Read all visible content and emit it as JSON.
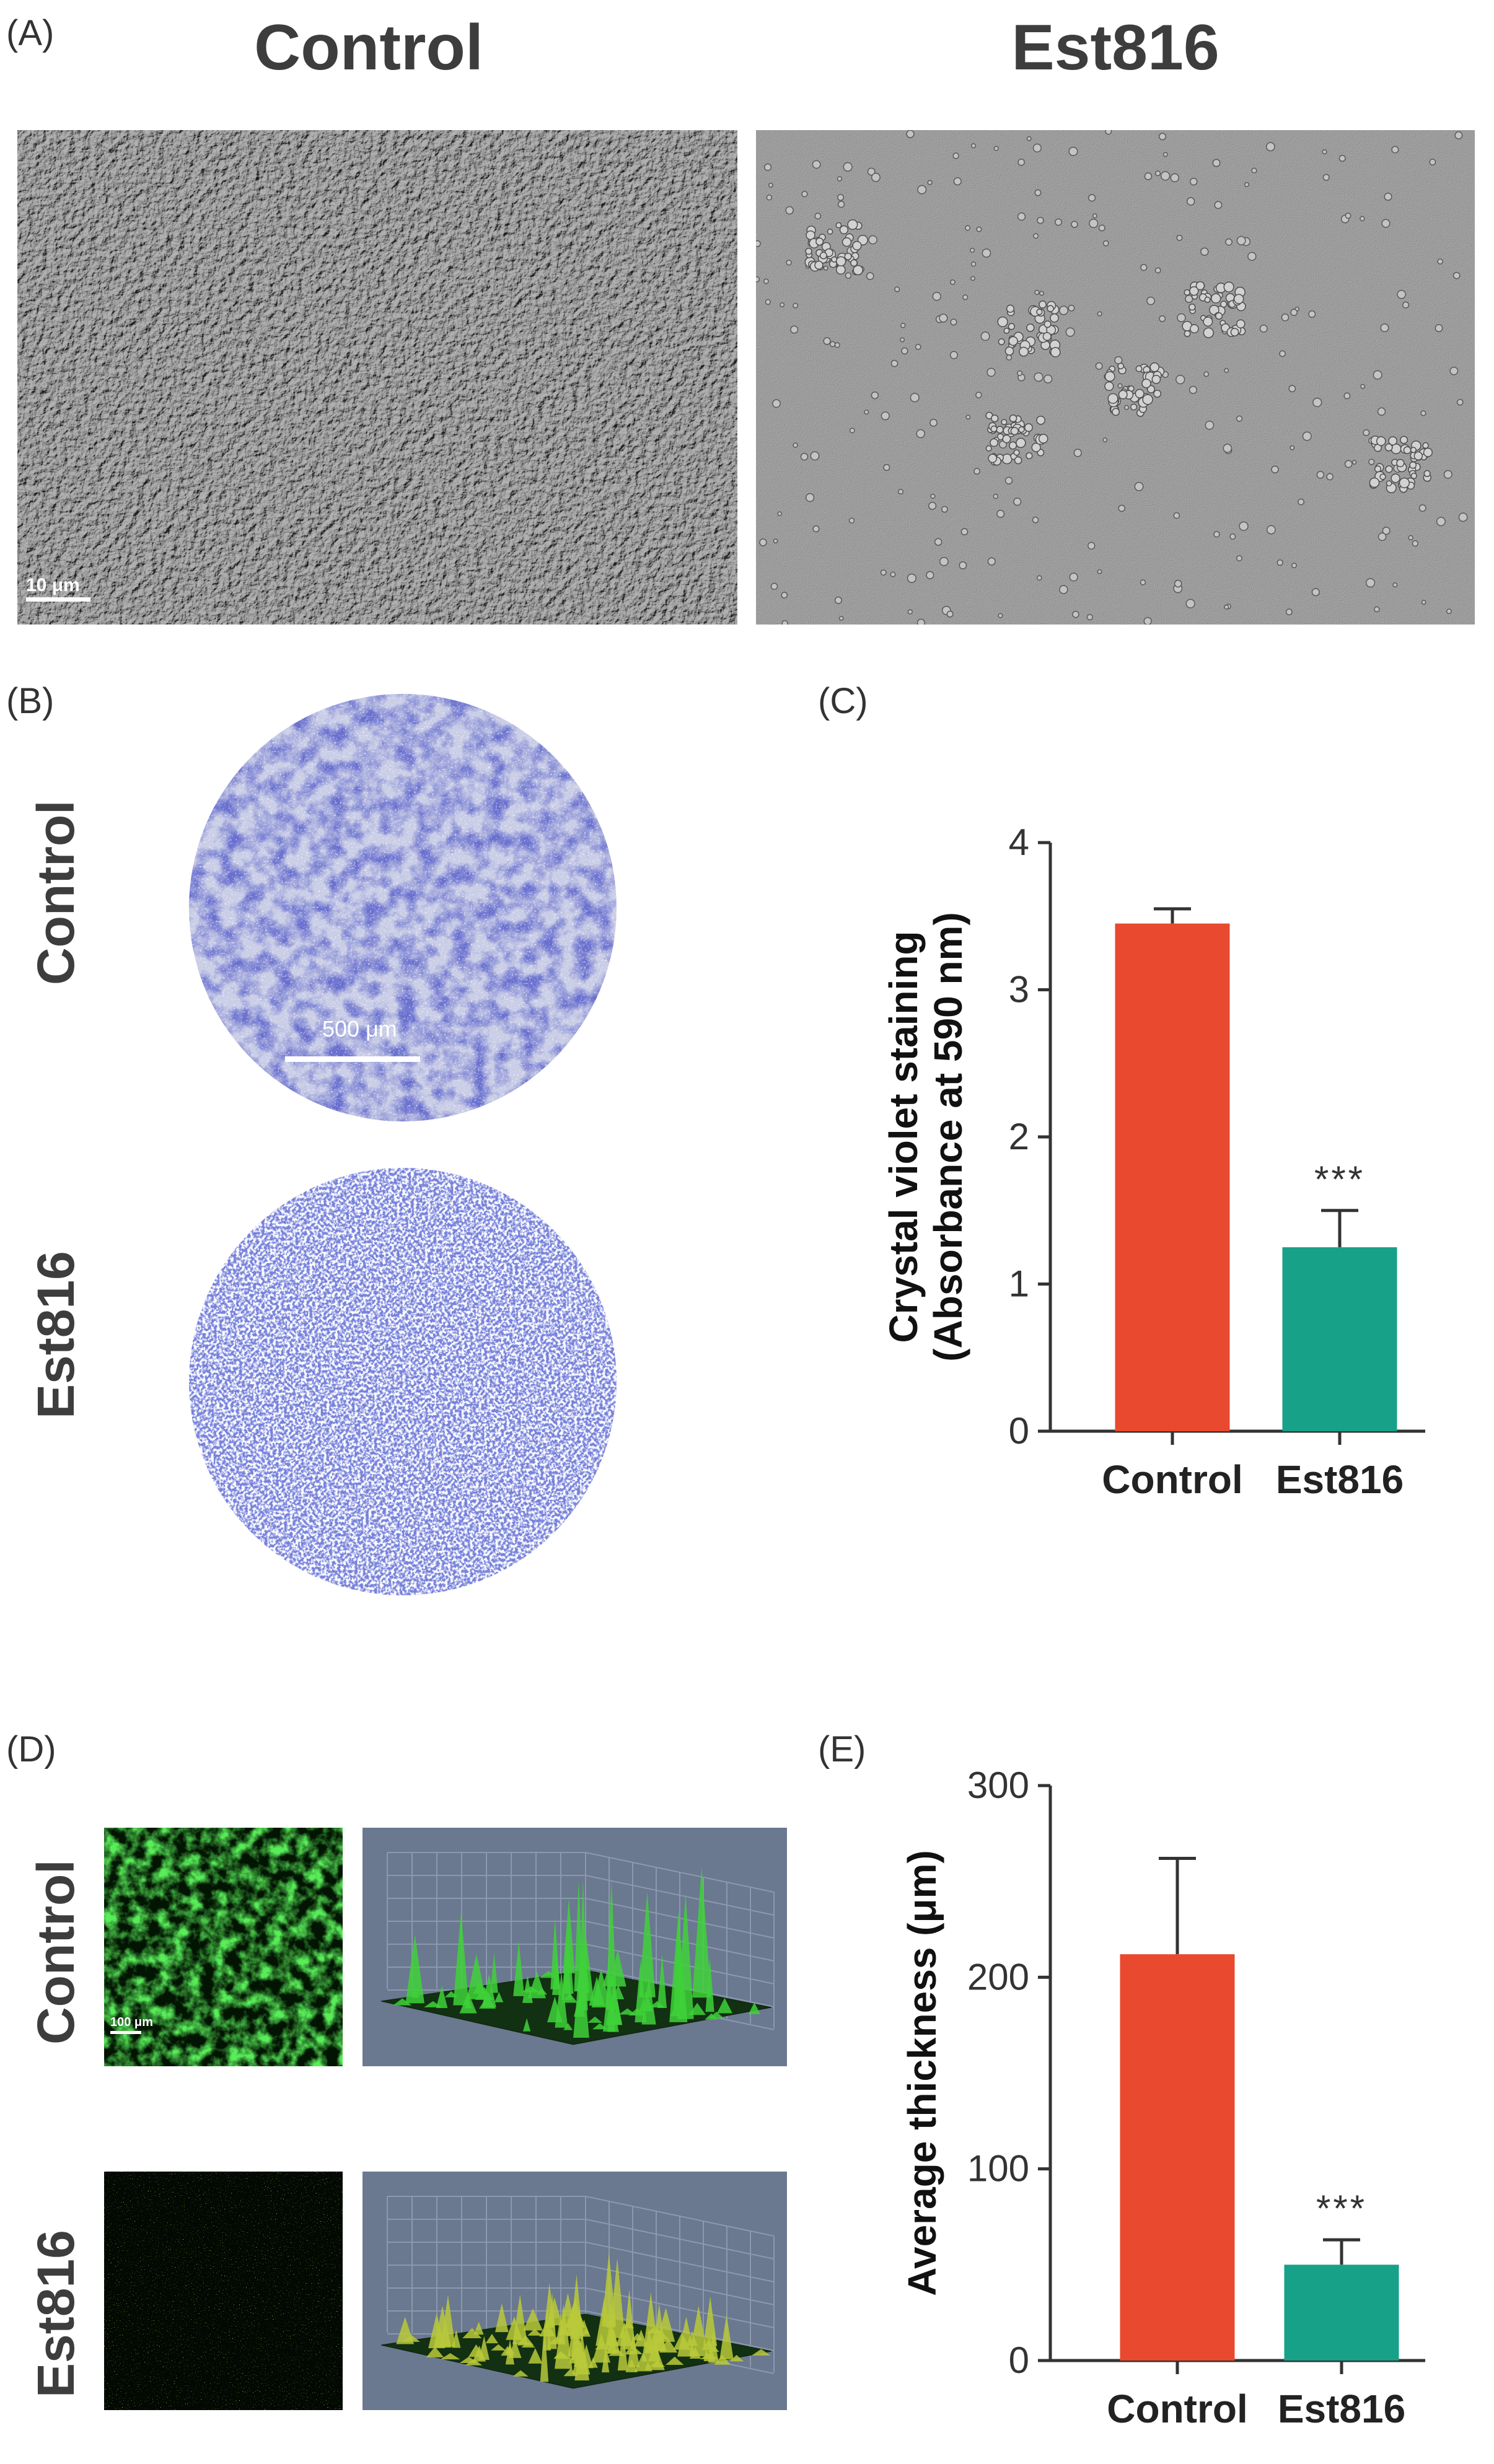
{
  "panel_a": {
    "letter": "(A)",
    "titles": [
      "Control",
      "Est816"
    ],
    "scale_label": "10 μm"
  },
  "panel_b": {
    "letter": "(B)",
    "row_labels": [
      "Control",
      "Est816"
    ],
    "scale_label": "500 μm"
  },
  "panel_c": {
    "letter": "(C)",
    "chart_data": {
      "type": "bar",
      "categories": [
        "Control",
        "Est816"
      ],
      "values": [
        3.45,
        1.25
      ],
      "errors": [
        0.1,
        0.25
      ],
      "annotations": [
        "",
        "***"
      ],
      "ylabel": [
        "Crystal violet staining",
        "(Absorbance at 590 nm)"
      ],
      "ylim": [
        0,
        4
      ],
      "yticks": [
        0,
        1,
        2,
        3,
        4
      ],
      "colors": [
        "#e8492f",
        "#16a188"
      ]
    }
  },
  "panel_d": {
    "letter": "(D)",
    "row_labels": [
      "Control",
      "Est816"
    ],
    "scale_label": "100 μm"
  },
  "panel_e": {
    "letter": "(E)",
    "chart_data": {
      "type": "bar",
      "categories": [
        "Control",
        "Est816"
      ],
      "values": [
        212,
        50
      ],
      "errors": [
        50,
        13
      ],
      "annotations": [
        "",
        "***"
      ],
      "ylabel": [
        "Average thickness (μm)"
      ],
      "ylim": [
        0,
        300
      ],
      "yticks": [
        0,
        100,
        200,
        300
      ],
      "colors": [
        "#e8492f",
        "#16a188"
      ]
    }
  }
}
